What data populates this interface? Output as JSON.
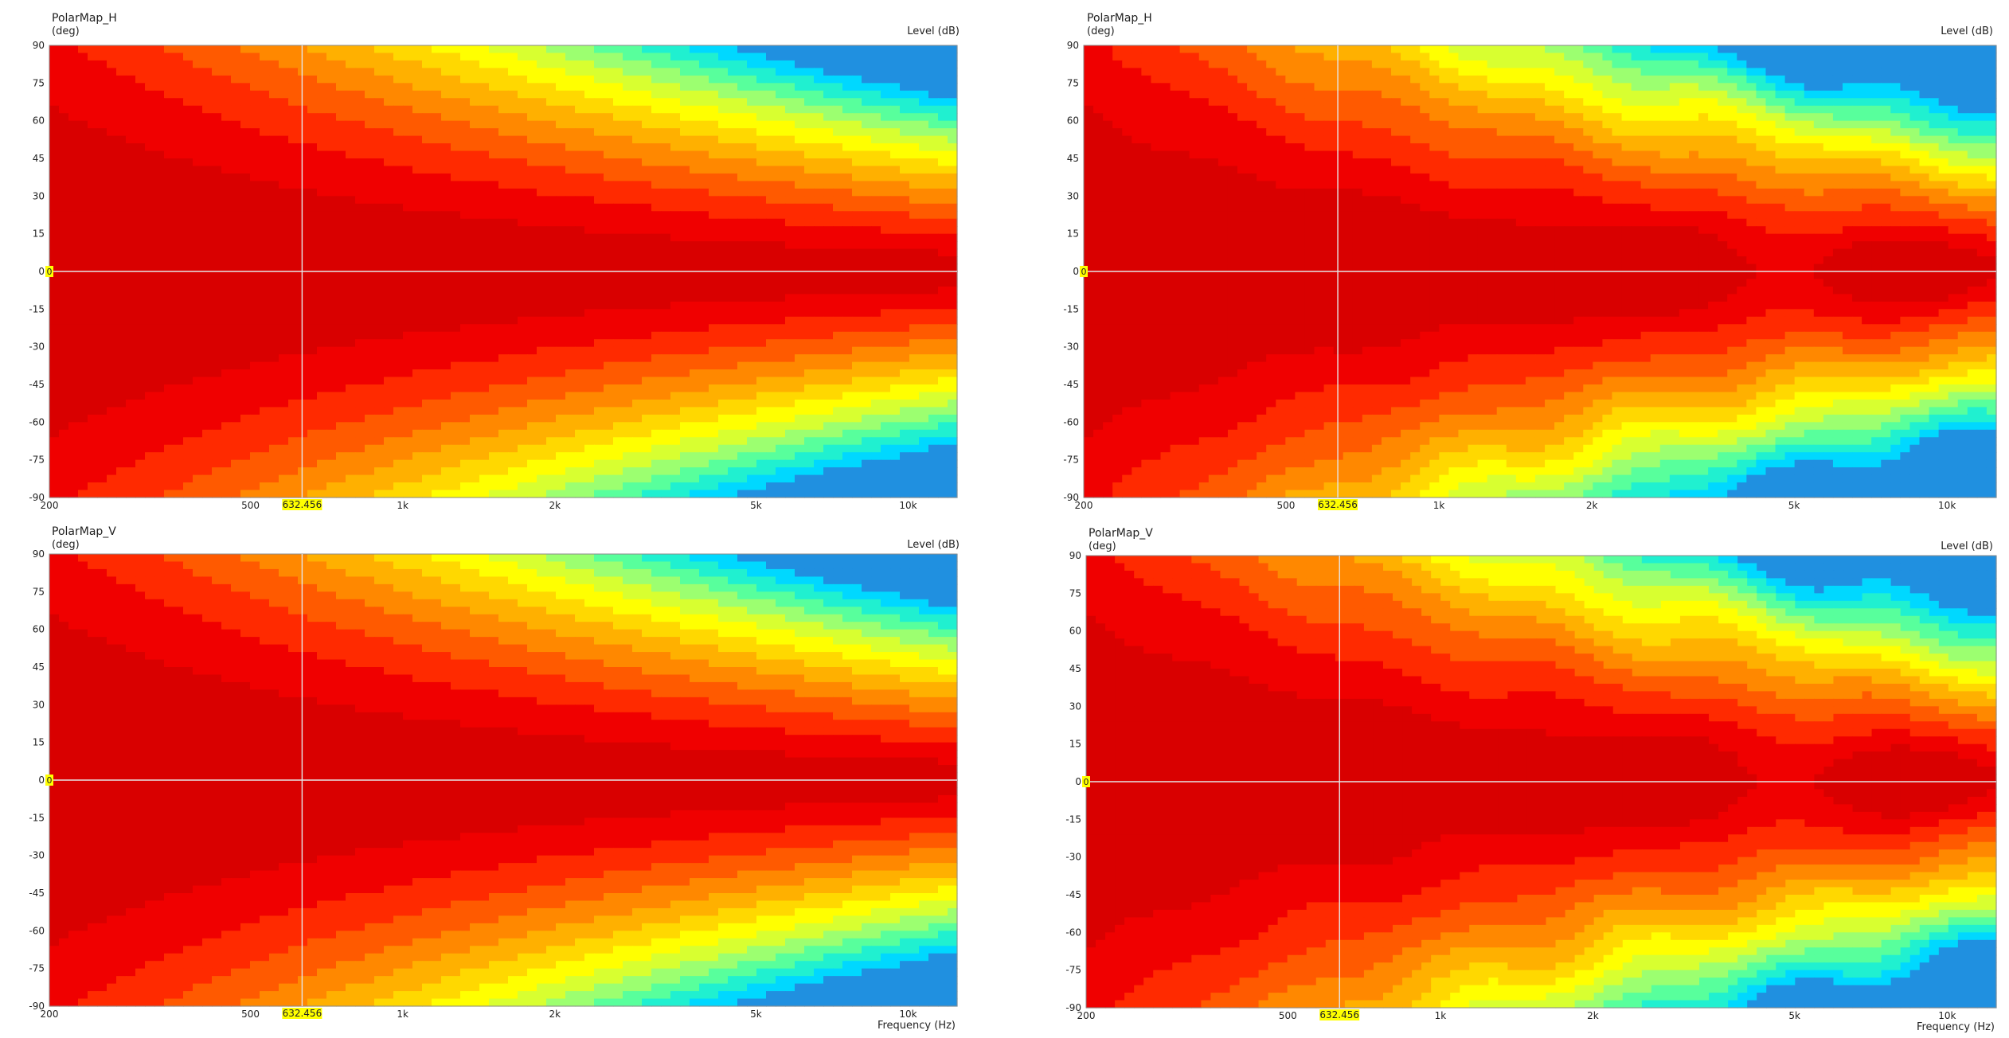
{
  "page": {
    "background": "#ffffff"
  },
  "palette": [
    "#d90000",
    "#f00000",
    "#ff2a00",
    "#ff5a00",
    "#ff8800",
    "#ffb000",
    "#ffd800",
    "#ffff00",
    "#d8ff30",
    "#9cff70",
    "#58ff9c",
    "#20f0d0",
    "#00d8ff",
    "#2090e0"
  ],
  "chart_data": [
    {
      "type": "heatmap",
      "title": "PolarMap_H",
      "ylabel_unit": "(deg)",
      "zlabel": "Level  (dB)",
      "xlabel": "",
      "x_scale": "log",
      "xlim": [
        200,
        12500
      ],
      "ylim": [
        -90,
        90
      ],
      "x_ticks": [
        {
          "v": 200,
          "label": "200"
        },
        {
          "v": 500,
          "label": "500"
        },
        {
          "v": 1000,
          "label": "1k"
        },
        {
          "v": 2000,
          "label": "2k"
        },
        {
          "v": 5000,
          "label": "5k"
        },
        {
          "v": 10000,
          "label": "10k"
        }
      ],
      "y_ticks": [
        90,
        75,
        60,
        45,
        30,
        15,
        0,
        -15,
        -30,
        -45,
        -60,
        -75,
        -90
      ],
      "cursor": {
        "x": 632.456,
        "x_label": "632.456",
        "y": 0,
        "y_label": "0"
      },
      "grid": false,
      "variant": "smooth",
      "stretch": 1.0
    },
    {
      "type": "heatmap",
      "title": "PolarMap_H",
      "ylabel_unit": "(deg)",
      "zlabel": "Level  (dB)",
      "xlabel": "",
      "x_scale": "log",
      "xlim": [
        200,
        12500
      ],
      "ylim": [
        -90,
        90
      ],
      "x_ticks": [
        {
          "v": 200,
          "label": "200"
        },
        {
          "v": 500,
          "label": "500"
        },
        {
          "v": 1000,
          "label": "1k"
        },
        {
          "v": 2000,
          "label": "2k"
        },
        {
          "v": 5000,
          "label": "5k"
        },
        {
          "v": 10000,
          "label": "10k"
        }
      ],
      "y_ticks": [
        90,
        75,
        60,
        45,
        30,
        15,
        0,
        -15,
        -30,
        -45,
        -60,
        -75,
        -90
      ],
      "cursor": {
        "x": 632.456,
        "x_label": "632.456",
        "y": 0,
        "y_label": "0"
      },
      "grid": false,
      "variant": "ripple",
      "stretch": 1.25
    },
    {
      "type": "heatmap",
      "title": "PolarMap_V",
      "ylabel_unit": "(deg)",
      "zlabel": "Level  (dB)",
      "xlabel": "Frequency  (Hz)",
      "x_scale": "log",
      "xlim": [
        200,
        12500
      ],
      "ylim": [
        -90,
        90
      ],
      "x_ticks": [
        {
          "v": 200,
          "label": "200"
        },
        {
          "v": 500,
          "label": "500"
        },
        {
          "v": 1000,
          "label": "1k"
        },
        {
          "v": 2000,
          "label": "2k"
        },
        {
          "v": 5000,
          "label": "5k"
        },
        {
          "v": 10000,
          "label": "10k"
        }
      ],
      "y_ticks": [
        90,
        75,
        60,
        45,
        30,
        15,
        0,
        -15,
        -30,
        -45,
        -60,
        -75,
        -90
      ],
      "cursor": {
        "x": 632.456,
        "x_label": "632.456",
        "y": 0,
        "y_label": "0"
      },
      "grid": false,
      "variant": "smooth",
      "stretch": 1.0
    },
    {
      "type": "heatmap",
      "title": "PolarMap_V",
      "ylabel_unit": "(deg)",
      "zlabel": "Level  (dB)",
      "xlabel": "Frequency  (Hz)",
      "x_scale": "log",
      "xlim": [
        200,
        12500
      ],
      "ylim": [
        -90,
        90
      ],
      "x_ticks": [
        {
          "v": 200,
          "label": "200"
        },
        {
          "v": 500,
          "label": "500"
        },
        {
          "v": 1000,
          "label": "1k"
        },
        {
          "v": 2000,
          "label": "2k"
        },
        {
          "v": 5000,
          "label": "5k"
        },
        {
          "v": 10000,
          "label": "10k"
        }
      ],
      "y_ticks": [
        90,
        75,
        60,
        45,
        30,
        15,
        0,
        -15,
        -30,
        -45,
        -60,
        -75,
        -90
      ],
      "cursor": {
        "x": 632.456,
        "x_label": "632.456",
        "y": 0,
        "y_label": "0"
      },
      "grid": false,
      "variant": "ripple",
      "stretch": 1.1
    }
  ]
}
